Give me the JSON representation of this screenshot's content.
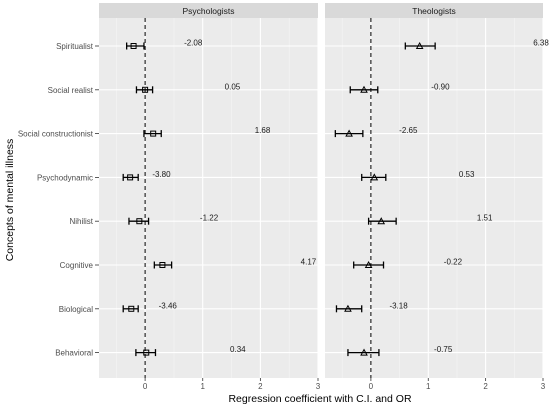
{
  "chart_data": {
    "type": "scatter",
    "xlabel": "Regression coefficient with C.I. and OR",
    "ylabel": "Concepts of mental illness",
    "categories": [
      "Spiritualist",
      "Social realist",
      "Social constructionist",
      "Psychodynamic",
      "Nihilist",
      "Cognitive",
      "Biological",
      "Behavioral"
    ],
    "x_ticks": [
      "0",
      "1",
      "2",
      "3"
    ],
    "xlim": [
      -0.8,
      3
    ],
    "reference_line": 0,
    "grid": true,
    "panels": [
      {
        "name": "Psychologists",
        "marker": "square",
        "points": [
          {
            "category": "Spiritualist",
            "estimate": -0.2,
            "ci": [
              -0.32,
              -0.02
            ],
            "or_label": "-2.08"
          },
          {
            "category": "Social realist",
            "estimate": 0.0,
            "ci": [
              -0.15,
              0.13
            ],
            "or_label": "0.05"
          },
          {
            "category": "Social constructionist",
            "estimate": 0.14,
            "ci": [
              -0.02,
              0.28
            ],
            "or_label": "1.68"
          },
          {
            "category": "Psychodynamic",
            "estimate": -0.26,
            "ci": [
              -0.38,
              -0.12
            ],
            "or_label": "-3.80"
          },
          {
            "category": "Nihilist",
            "estimate": -0.1,
            "ci": [
              -0.28,
              0.06
            ],
            "or_label": "-1.22"
          },
          {
            "category": "Cognitive",
            "estimate": 0.3,
            "ci": [
              0.16,
              0.46
            ],
            "or_label": "4.17"
          },
          {
            "category": "Biological",
            "estimate": -0.24,
            "ci": [
              -0.38,
              -0.12
            ],
            "or_label": "-3.46"
          },
          {
            "category": "Behavioral",
            "estimate": 0.02,
            "ci": [
              -0.16,
              0.18
            ],
            "or_label": "0.34"
          }
        ]
      },
      {
        "name": "Theologists",
        "marker": "triangle",
        "points": [
          {
            "category": "Spiritualist",
            "estimate": 0.85,
            "ci": [
              0.6,
              1.12
            ],
            "or_label": "6.38"
          },
          {
            "category": "Social realist",
            "estimate": -0.12,
            "ci": [
              -0.36,
              0.12
            ],
            "or_label": "-0.90"
          },
          {
            "category": "Social constructionist",
            "estimate": -0.38,
            "ci": [
              -0.62,
              -0.14
            ],
            "or_label": "-2.65"
          },
          {
            "category": "Psychodynamic",
            "estimate": 0.06,
            "ci": [
              -0.16,
              0.26
            ],
            "or_label": "0.53"
          },
          {
            "category": "Nihilist",
            "estimate": 0.18,
            "ci": [
              -0.04,
              0.44
            ],
            "or_label": "1.51"
          },
          {
            "category": "Cognitive",
            "estimate": -0.04,
            "ci": [
              -0.3,
              0.22
            ],
            "or_label": "-0.22"
          },
          {
            "category": "Biological",
            "estimate": -0.4,
            "ci": [
              -0.6,
              -0.16
            ],
            "or_label": "-3.18"
          },
          {
            "category": "Behavioral",
            "estimate": -0.12,
            "ci": [
              -0.4,
              0.14
            ],
            "or_label": "-0.75"
          }
        ]
      }
    ]
  }
}
